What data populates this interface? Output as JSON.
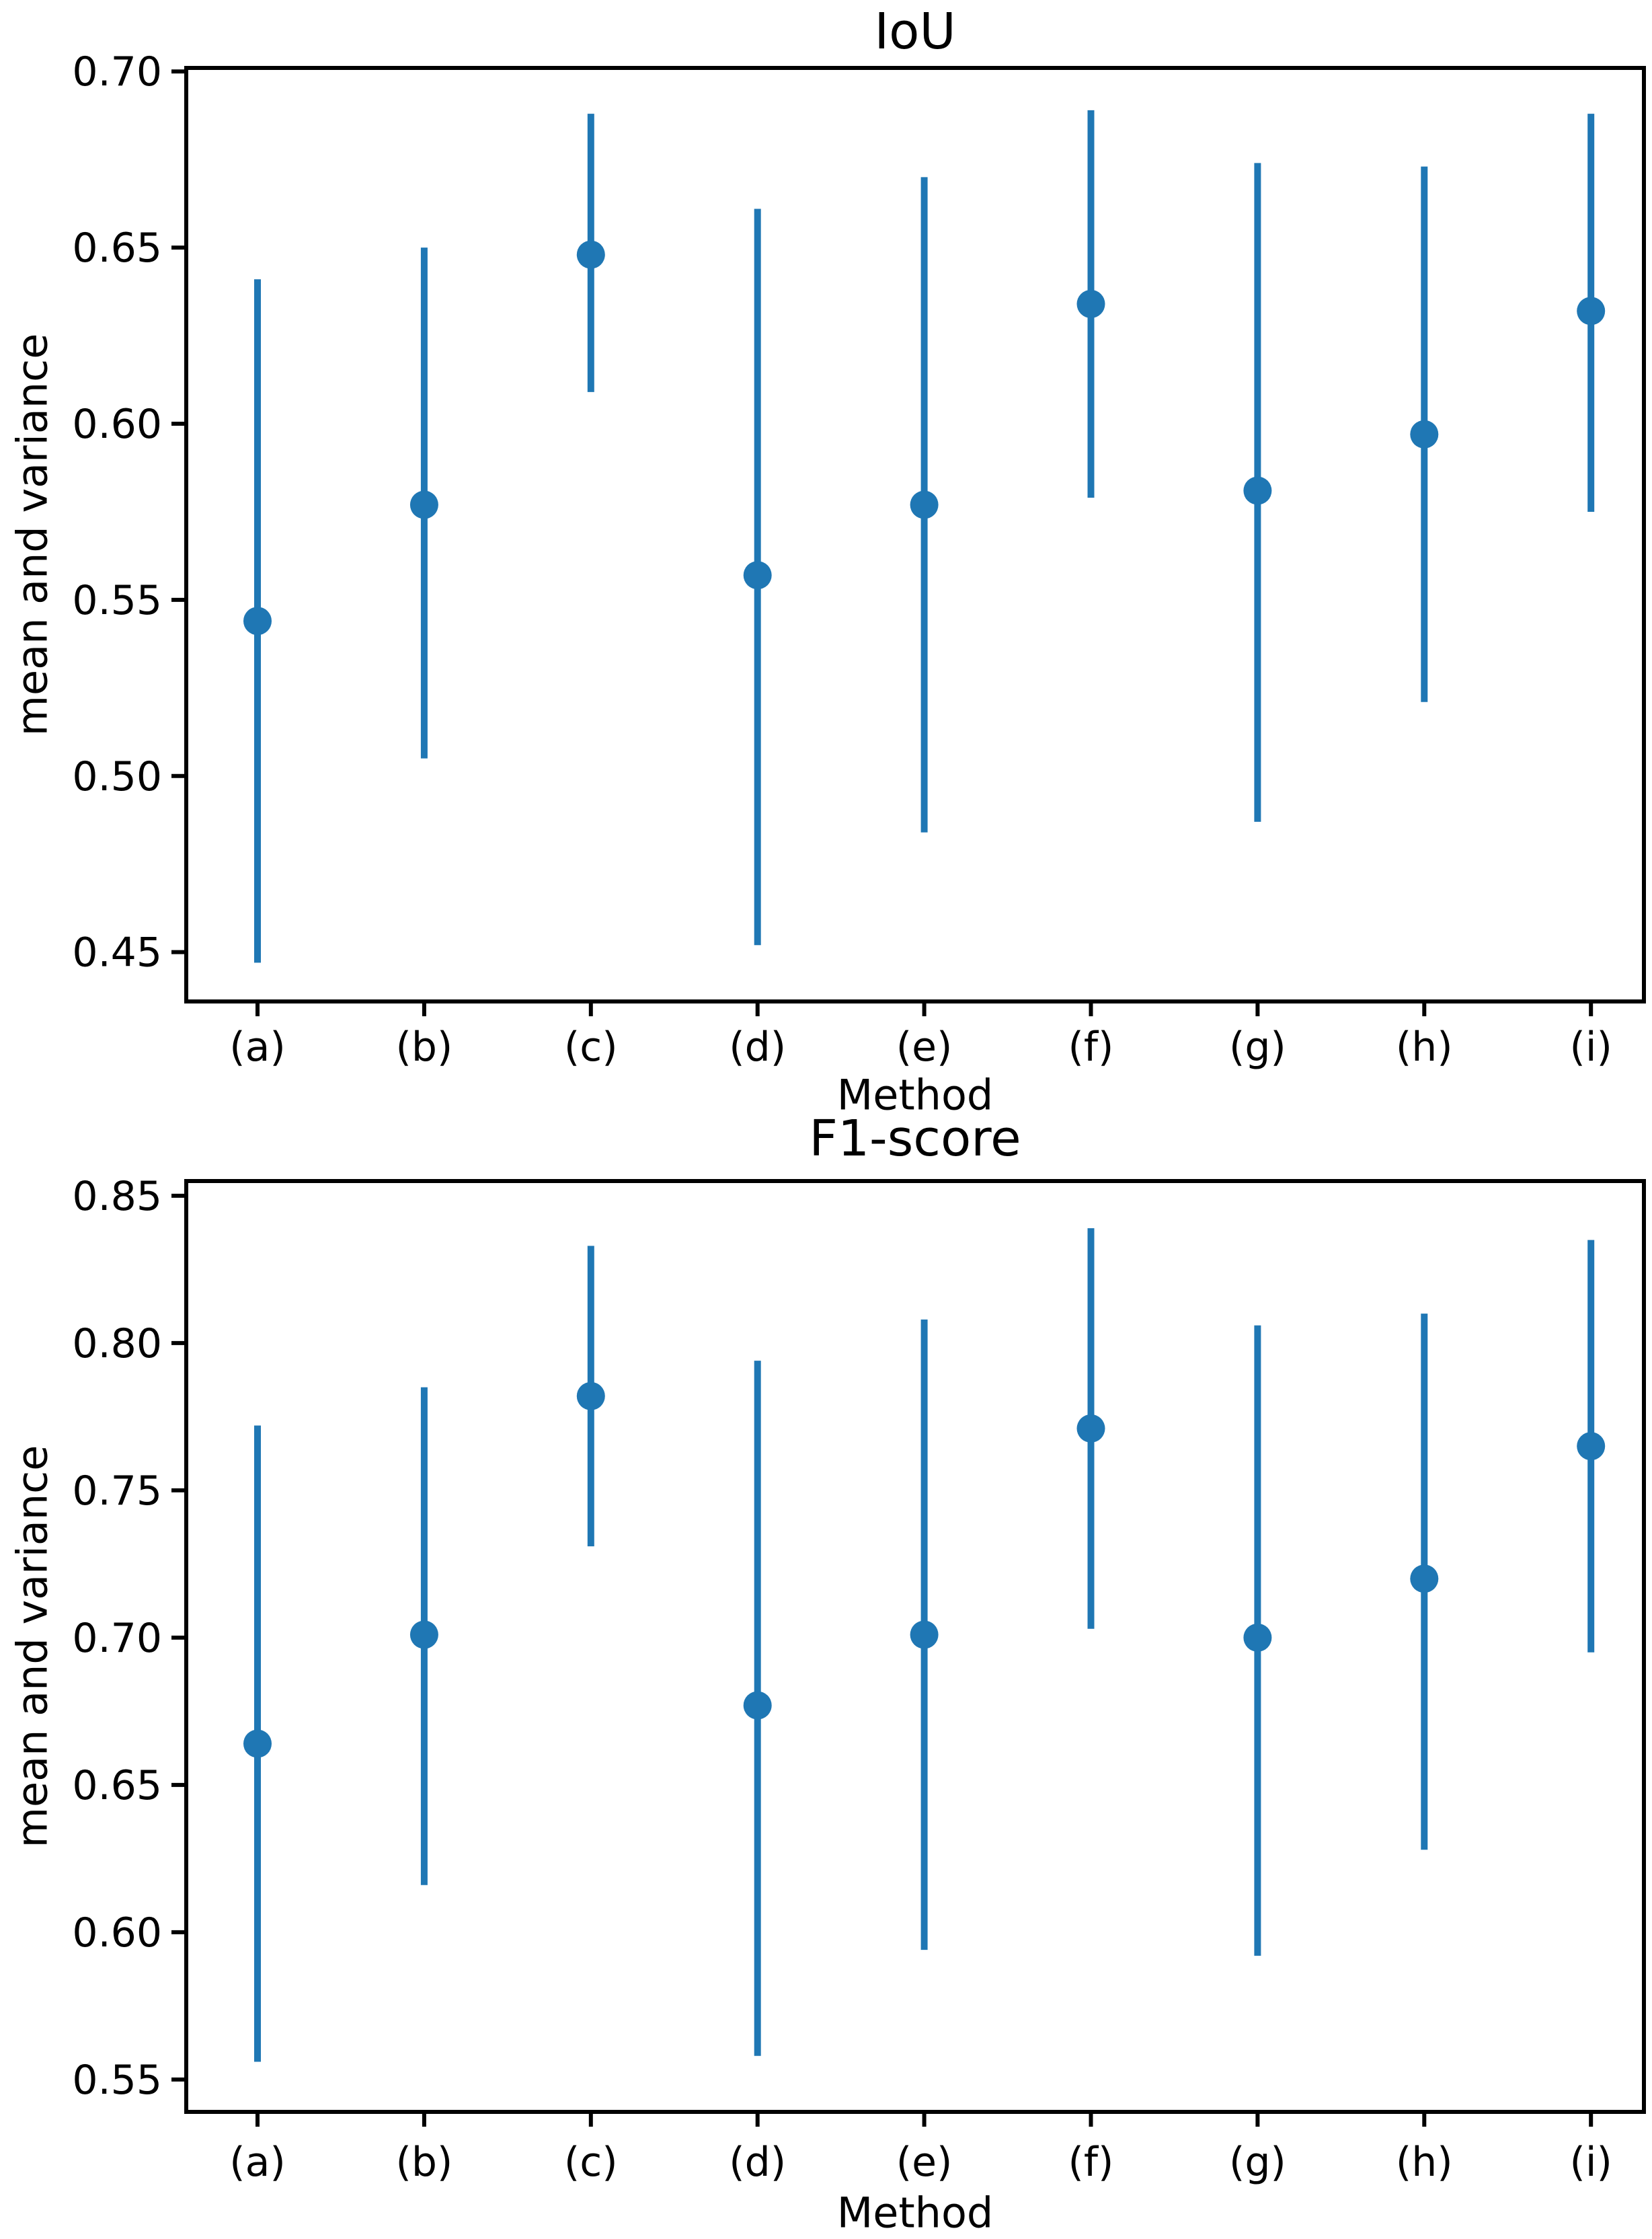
{
  "page": {
    "background": "#ffffff",
    "accent_color": "#1f77b4",
    "axis_color": "#000000"
  },
  "chart_data": [
    {
      "type": "errorbar",
      "title": "IoU",
      "xlabel": "Method",
      "ylabel": "mean and variance",
      "categories": [
        "(a)",
        "(b)",
        "(c)",
        "(d)",
        "(e)",
        "(f)",
        "(g)",
        "(h)",
        "(i)"
      ],
      "series": [
        {
          "name": "mean",
          "means": [
            0.544,
            0.577,
            0.648,
            0.557,
            0.577,
            0.634,
            0.581,
            0.597,
            0.632
          ],
          "lower": [
            0.447,
            0.505,
            0.609,
            0.452,
            0.484,
            0.579,
            0.487,
            0.521,
            0.575
          ],
          "upper": [
            0.641,
            0.65,
            0.688,
            0.661,
            0.67,
            0.689,
            0.674,
            0.673,
            0.688
          ]
        }
      ],
      "yticks": [
        0.45,
        0.5,
        0.55,
        0.6,
        0.65,
        0.7
      ],
      "ytick_labels": [
        "0.45",
        "0.50",
        "0.55",
        "0.60",
        "0.65",
        "0.70"
      ],
      "ylim": [
        0.436,
        0.701
      ],
      "grid": false,
      "legend": null,
      "marker": "circle",
      "color": "#1f77b4"
    },
    {
      "type": "errorbar",
      "title": "F1-score",
      "xlabel": "Method",
      "ylabel": "mean and variance",
      "categories": [
        "(a)",
        "(b)",
        "(c)",
        "(d)",
        "(e)",
        "(f)",
        "(g)",
        "(h)",
        "(i)"
      ],
      "series": [
        {
          "name": "mean",
          "means": [
            0.664,
            0.701,
            0.782,
            0.677,
            0.701,
            0.771,
            0.7,
            0.72,
            0.765
          ],
          "lower": [
            0.556,
            0.616,
            0.731,
            0.558,
            0.594,
            0.703,
            0.592,
            0.628,
            0.695
          ],
          "upper": [
            0.772,
            0.785,
            0.833,
            0.794,
            0.808,
            0.839,
            0.806,
            0.81,
            0.835
          ]
        }
      ],
      "yticks": [
        0.55,
        0.6,
        0.65,
        0.7,
        0.75,
        0.8,
        0.85
      ],
      "ytick_labels": [
        "0.55",
        "0.60",
        "0.65",
        "0.70",
        "0.75",
        "0.80",
        "0.85"
      ],
      "ylim": [
        0.539,
        0.855
      ],
      "grid": false,
      "legend": null,
      "marker": "circle",
      "color": "#1f77b4"
    }
  ]
}
